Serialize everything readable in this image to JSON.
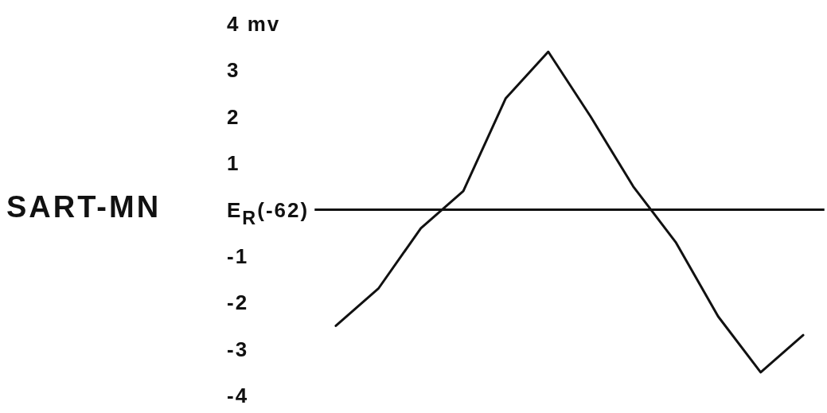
{
  "chart_data": {
    "type": "line",
    "title": "SART-MN",
    "categories": [
      null,
      null,
      null,
      null,
      null,
      null,
      null,
      null,
      null,
      null,
      null,
      null
    ],
    "series": [
      {
        "color": "#111111",
        "values": [
          -2.5,
          -1.7,
          -0.4,
          0.4,
          2.4,
          3.4,
          2.0,
          0.5,
          -0.7,
          -2.3,
          -3.5,
          -2.7
        ]
      }
    ],
    "ylim": [
      -4,
      4
    ],
    "yticks": [
      {
        "value": 4,
        "label": "4 mv"
      },
      3,
      2,
      1,
      -1,
      -2,
      -3,
      -4
    ],
    "ref_lines": [
      {
        "axis": "y",
        "value": 0,
        "label": "E$_{R}$(-62)",
        "color": "#111111"
      }
    ],
    "grid": false,
    "legend": false,
    "marker": "none",
    "line_style": "solid",
    "tick_labels": "y"
  }
}
